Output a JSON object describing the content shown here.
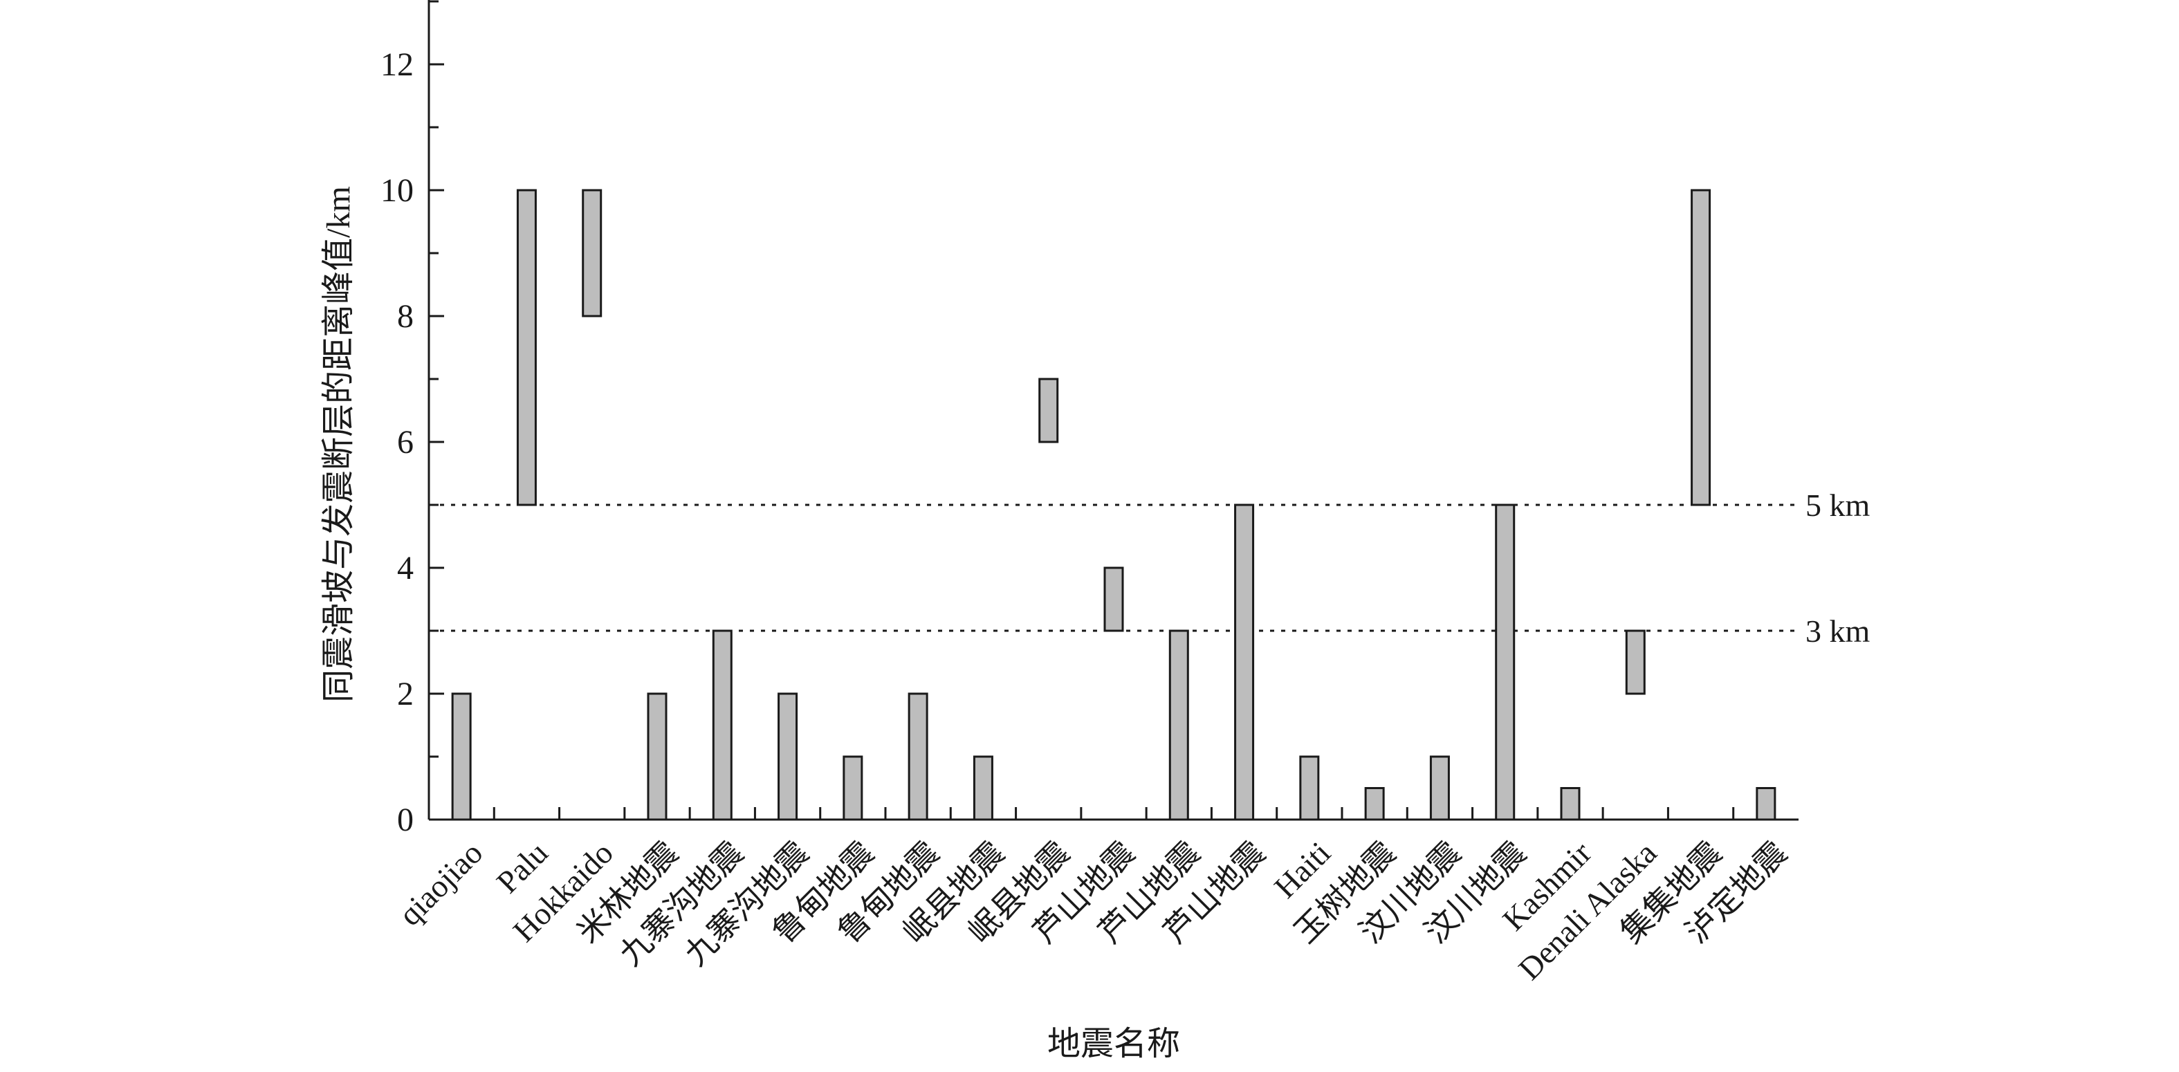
{
  "chart_data": {
    "type": "bar",
    "title": "",
    "xlabel": "地震名称",
    "ylabel": "同震滑坡与发震断层的距离峰值/km",
    "ylim": [
      0,
      13
    ],
    "yticks": [
      0,
      2,
      4,
      6,
      8,
      10,
      12
    ],
    "grid": false,
    "categories": [
      "qiaojiao",
      "Palu",
      "Hokkaido",
      "米林地震",
      "九寨沟地震",
      "九寨沟地震",
      "鲁甸地震",
      "鲁甸地震",
      "岷县地震",
      "岷县地震",
      "芦山地震",
      "芦山地震",
      "芦山地震",
      "Haiti",
      "玉树地震",
      "汶川地震",
      "汶川地震",
      "Kashmir",
      "Denali Alaska",
      "集集地震",
      "泸定地震"
    ],
    "ranges": [
      [
        0,
        2
      ],
      [
        5,
        10
      ],
      [
        8,
        10
      ],
      [
        0,
        2
      ],
      [
        0,
        3
      ],
      [
        0,
        2
      ],
      [
        0,
        1
      ],
      [
        0,
        2
      ],
      [
        0,
        1
      ],
      [
        6,
        7
      ],
      [
        3,
        4
      ],
      [
        0,
        3
      ],
      [
        0,
        5
      ],
      [
        0,
        1
      ],
      [
        0,
        0.5
      ],
      [
        0,
        1
      ],
      [
        0,
        5
      ],
      [
        0,
        0.5
      ],
      [
        2,
        3
      ],
      [
        5,
        10
      ],
      [
        0,
        0.5
      ]
    ],
    "bar_color": "#bdbdbd",
    "reference_lines": [
      {
        "value": 5,
        "label": "5 km"
      },
      {
        "value": 3,
        "label": "3 km"
      }
    ]
  }
}
